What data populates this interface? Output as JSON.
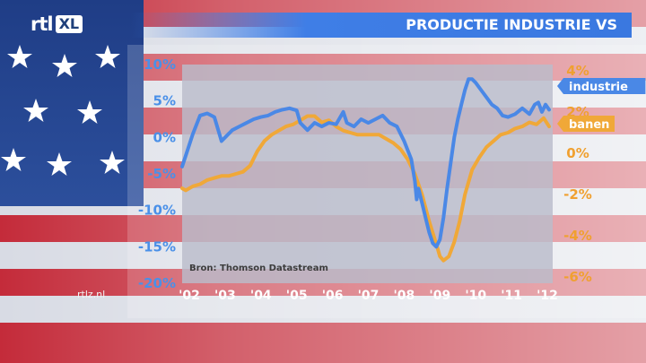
{
  "broadcast": {
    "logo_rtl": "rtl",
    "logo_xl": "XL",
    "watermark": "rtlz.nl",
    "title": "PRODUCTIE INDUSTRIE VS"
  },
  "colors": {
    "industrie": "#4a88e6",
    "banen": "#f0a838",
    "plot_bg": "#b9bccb",
    "title_bar": "#3f7ee6"
  },
  "chart_data": {
    "type": "line",
    "title": "PRODUCTIE INDUSTRIE VS",
    "source": "Bron: Thomson Datastream",
    "x_tick_labels": [
      "'02",
      "'03",
      "'04",
      "'05",
      "'06",
      "'07",
      "'08",
      "'09",
      "'10",
      "'11",
      "'12"
    ],
    "x_ticks": [
      2002,
      2003,
      2004,
      2005,
      2006,
      2007,
      2008,
      2009,
      2010,
      2011,
      2012
    ],
    "xlim": [
      2001.9,
      2012.25
    ],
    "y_left": {
      "ticks": [
        10,
        5,
        0,
        -5,
        -10,
        -15,
        -20
      ],
      "tick_labels": [
        "10%",
        "5%",
        "0%",
        "-5%",
        "-10%",
        "-15%",
        "-20%"
      ],
      "lim": [
        -20,
        10
      ]
    },
    "y_right": {
      "ticks": [
        4,
        2,
        0,
        -2,
        -4,
        -6
      ],
      "tick_labels": [
        "4%",
        "2%",
        "0%",
        "-2%",
        "-4%",
        "-6%"
      ],
      "lim": [
        -6.3,
        4.3
      ]
    },
    "legend_placement": "right",
    "grid": false,
    "series": [
      {
        "name": "industrie",
        "axis": "left",
        "x": [
          2001.9,
          2002.0,
          2002.2,
          2002.4,
          2002.6,
          2002.8,
          2003.0,
          2003.1,
          2003.3,
          2003.5,
          2003.7,
          2003.9,
          2004.1,
          2004.3,
          2004.5,
          2004.7,
          2004.9,
          2005.1,
          2005.2,
          2005.4,
          2005.6,
          2005.8,
          2006.0,
          2006.2,
          2006.4,
          2006.5,
          2006.7,
          2006.9,
          2007.1,
          2007.3,
          2007.5,
          2007.7,
          2007.9,
          2008.1,
          2008.3,
          2008.4,
          2008.45,
          2008.5,
          2008.6,
          2008.7,
          2008.8,
          2008.9,
          2009.0,
          2009.1,
          2009.2,
          2009.3,
          2009.4,
          2009.5,
          2009.6,
          2009.7,
          2009.8,
          2009.9,
          2010.0,
          2010.1,
          2010.25,
          2010.4,
          2010.55,
          2010.7,
          2010.85,
          2011.0,
          2011.2,
          2011.4,
          2011.6,
          2011.75,
          2011.85,
          2011.95,
          2012.05,
          2012.15
        ],
        "values": [
          -4.0,
          -2.5,
          0.5,
          3.0,
          3.3,
          2.8,
          -0.5,
          0.0,
          1.0,
          1.5,
          2.0,
          2.5,
          2.8,
          3.0,
          3.5,
          3.8,
          4.0,
          3.7,
          2.0,
          1.0,
          2.0,
          1.5,
          2.0,
          1.8,
          3.5,
          2.0,
          1.5,
          2.5,
          2.0,
          2.5,
          3.0,
          2.0,
          1.5,
          -0.5,
          -3.0,
          -6.0,
          -8.5,
          -7.0,
          -9.0,
          -11.0,
          -13.0,
          -14.5,
          -15.0,
          -14.0,
          -11.0,
          -7.0,
          -3.5,
          0.0,
          2.5,
          4.5,
          6.5,
          8.0,
          8.0,
          7.5,
          6.5,
          5.5,
          4.5,
          4.0,
          3.0,
          2.8,
          3.2,
          4.0,
          3.2,
          4.5,
          4.8,
          3.5,
          4.5,
          3.8
        ]
      },
      {
        "name": "banen",
        "axis": "right",
        "x": [
          2001.9,
          2002.0,
          2002.2,
          2002.4,
          2002.6,
          2002.8,
          2003.0,
          2003.2,
          2003.4,
          2003.6,
          2003.8,
          2004.0,
          2004.2,
          2004.4,
          2004.6,
          2004.8,
          2005.0,
          2005.2,
          2005.4,
          2005.6,
          2005.8,
          2006.0,
          2006.2,
          2006.4,
          2006.6,
          2006.8,
          2007.0,
          2007.2,
          2007.4,
          2007.6,
          2007.8,
          2008.0,
          2008.2,
          2008.4,
          2008.6,
          2008.8,
          2009.0,
          2009.1,
          2009.2,
          2009.35,
          2009.5,
          2009.65,
          2009.8,
          2010.0,
          2010.2,
          2010.4,
          2010.6,
          2010.8,
          2011.0,
          2011.2,
          2011.4,
          2011.6,
          2011.8,
          2012.0,
          2012.15
        ],
        "values": [
          -1.7,
          -1.8,
          -1.6,
          -1.5,
          -1.3,
          -1.2,
          -1.1,
          -1.1,
          -1.0,
          -0.9,
          -0.6,
          0.1,
          0.6,
          0.9,
          1.1,
          1.3,
          1.4,
          1.6,
          1.8,
          1.8,
          1.5,
          1.6,
          1.3,
          1.1,
          1.0,
          0.9,
          0.9,
          0.9,
          0.9,
          0.7,
          0.5,
          0.2,
          -0.3,
          -1.0,
          -2.0,
          -3.3,
          -4.4,
          -5.0,
          -5.2,
          -5.0,
          -4.3,
          -3.3,
          -2.0,
          -0.8,
          -0.2,
          0.3,
          0.6,
          0.9,
          1.0,
          1.2,
          1.3,
          1.5,
          1.4,
          1.7,
          1.3
        ]
      }
    ]
  }
}
